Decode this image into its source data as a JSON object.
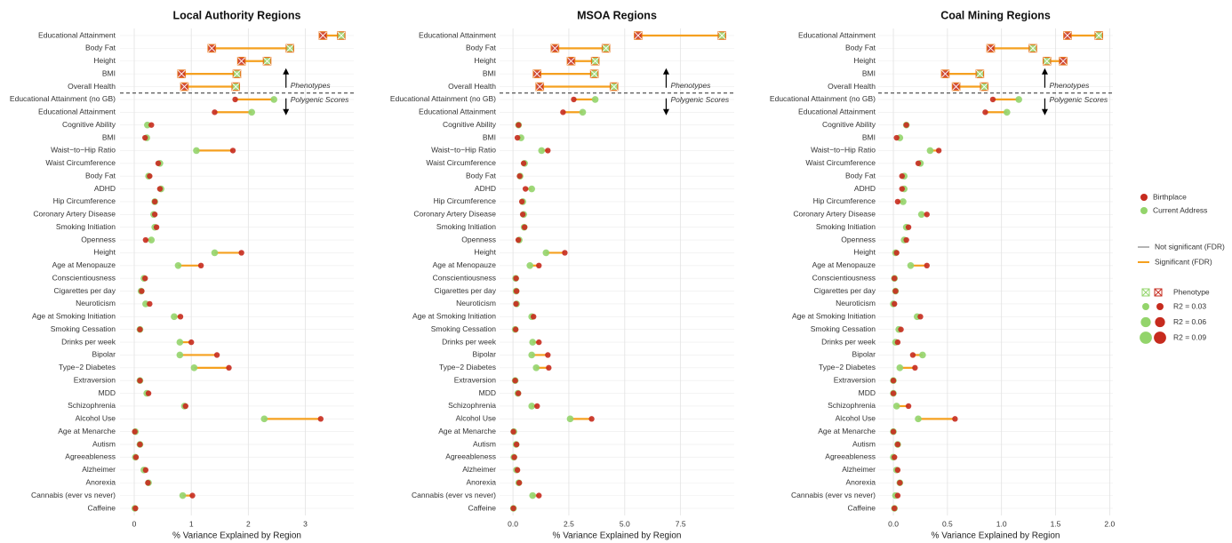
{
  "chart_data": [
    {
      "type": "dumbbell",
      "title": "Local Authority Regions",
      "x_label": "% Variance Explained by Region",
      "categories": [
        "Educational Attainment",
        "Body Fat",
        "Height",
        "BMI",
        "Overall Health",
        "Educational Attainment (no GB)",
        "Educational Attainment",
        "Cognitive Ability",
        "BMI",
        "Waist−to−Hip Ratio",
        "Waist Circumference",
        "Body Fat",
        "ADHD",
        "Hip Circumference",
        "Coronary Artery Disease",
        "Smoking Initiation",
        "Openness",
        "Height",
        "Age at Menopauze",
        "Conscientiousness",
        "Cigarettes per day",
        "Neuroticism",
        "Age at Smoking Initiation",
        "Smoking Cessation",
        "Drinks per week",
        "Bipolar",
        "Type−2 Diabetes",
        "Extraversion",
        "MDD",
        "Schizophrenia",
        "Alcohol Use",
        "Age at Menarche",
        "Autism",
        "Agreeableness",
        "Alzheimer",
        "Anorexia",
        "Cannabis (ever vs never)",
        "Caffeine"
      ],
      "phenotype_rows": 5,
      "annotations": [
        "Phenotypes",
        "Polygenic Scores"
      ],
      "series": [
        {
          "name": "Birthplace",
          "color": "#c62b1e",
          "values": [
            3.31,
            1.36,
            1.88,
            0.83,
            0.88,
            1.77,
            1.41,
            0.3,
            0.19,
            1.73,
            0.42,
            0.27,
            0.45,
            0.36,
            0.36,
            0.39,
            0.2,
            1.88,
            1.17,
            0.19,
            0.13,
            0.27,
            0.81,
            0.1,
            1.0,
            1.45,
            1.66,
            0.1,
            0.25,
            0.9,
            3.27,
            0.01,
            0.1,
            0.03,
            0.2,
            0.24,
            1.02,
            0.02
          ]
        },
        {
          "name": "Current Address",
          "color": "#93d46b",
          "values": [
            3.63,
            2.73,
            2.33,
            1.8,
            1.78,
            2.45,
            2.06,
            0.23,
            0.22,
            1.09,
            0.45,
            0.25,
            0.47,
            0.36,
            0.34,
            0.36,
            0.3,
            1.41,
            0.77,
            0.17,
            0.12,
            0.2,
            0.7,
            0.1,
            0.8,
            0.8,
            1.05,
            0.1,
            0.22,
            0.88,
            2.28,
            0.02,
            0.1,
            0.02,
            0.17,
            0.25,
            0.85,
            0.01
          ]
        }
      ],
      "xlim": [
        -0.25,
        3.85
      ],
      "xticks": [
        0,
        1,
        2,
        3
      ],
      "grid": true
    },
    {
      "type": "dumbbell",
      "title": "MSOA Regions",
      "x_label": "% Variance Explained by Region",
      "categories": [
        "Educational Attainment",
        "Body Fat",
        "Height",
        "BMI",
        "Overall Health",
        "Educational Attainment (no GB)",
        "Educational Attainment",
        "Cognitive Ability",
        "BMI",
        "Waist−to−Hip Ratio",
        "Waist Circumference",
        "Body Fat",
        "ADHD",
        "Hip Circumference",
        "Coronary Artery Disease",
        "Smoking Initiation",
        "Openness",
        "Height",
        "Age at Menopauze",
        "Conscientiousness",
        "Cigarettes per day",
        "Neuroticism",
        "Age at Smoking Initiation",
        "Smoking Cessation",
        "Drinks per week",
        "Bipolar",
        "Type−2 Diabetes",
        "Extraversion",
        "MDD",
        "Schizophrenia",
        "Alcohol Use",
        "Age at Menarche",
        "Autism",
        "Agreeableness",
        "Alzheimer",
        "Anorexia",
        "Cannabis (ever vs never)",
        "Caffeine"
      ],
      "phenotype_rows": 5,
      "annotations": [
        "Phenotypes",
        "Polygenic Scores"
      ],
      "series": [
        {
          "name": "Birthplace",
          "color": "#c62b1e",
          "values": [
            5.6,
            1.88,
            2.6,
            1.08,
            1.2,
            2.72,
            2.24,
            0.25,
            0.2,
            1.56,
            0.48,
            0.3,
            0.56,
            0.4,
            0.44,
            0.52,
            0.24,
            2.32,
            1.16,
            0.14,
            0.16,
            0.14,
            0.92,
            0.12,
            1.16,
            1.56,
            1.6,
            0.1,
            0.24,
            1.08,
            3.52,
            0.02,
            0.16,
            0.06,
            0.2,
            0.28,
            1.16,
            0.02
          ]
        },
        {
          "name": "Current Address",
          "color": "#93d46b",
          "values": [
            9.35,
            4.16,
            3.68,
            3.64,
            4.52,
            3.68,
            3.12,
            0.25,
            0.36,
            1.28,
            0.52,
            0.32,
            0.84,
            0.44,
            0.48,
            0.5,
            0.28,
            1.48,
            0.76,
            0.12,
            0.14,
            0.16,
            0.84,
            0.1,
            0.88,
            0.84,
            1.04,
            0.1,
            0.22,
            0.84,
            2.56,
            0.04,
            0.14,
            0.04,
            0.16,
            0.26,
            0.88,
            0.02
          ]
        }
      ],
      "xlim": [
        -0.6,
        9.9
      ],
      "xticks": [
        {
          "value": 0,
          "label": "0.0"
        },
        2.5,
        {
          "value": 5,
          "label": "5.0"
        },
        7.5
      ],
      "grid": true
    },
    {
      "type": "dumbbell",
      "title": "Coal Mining Regions",
      "x_label": "% Variance Explained by Region",
      "categories": [
        "Educational Attainment",
        "Body Fat",
        "Height",
        "BMI",
        "Overall Health",
        "Educational Attainment (no GB)",
        "Educational Attainment",
        "Cognitive Ability",
        "BMI",
        "Waist−to−Hip Ratio",
        "Waist Circumference",
        "Body Fat",
        "ADHD",
        "Hip Circumference",
        "Coronary Artery Disease",
        "Smoking Initiation",
        "Openness",
        "Height",
        "Age at Menopauze",
        "Conscientiousness",
        "Cigarettes per day",
        "Neuroticism",
        "Age at Smoking Initiation",
        "Smoking Cessation",
        "Drinks per week",
        "Bipolar",
        "Type−2 Diabetes",
        "Extraversion",
        "MDD",
        "Schizophrenia",
        "Alcohol Use",
        "Age at Menarche",
        "Autism",
        "Agreeableness",
        "Alzheimer",
        "Anorexia",
        "Cannabis (ever vs never)",
        "Caffeine"
      ],
      "phenotype_rows": 5,
      "annotations": [
        "Phenotypes",
        "Polygenic Scores"
      ],
      "series": [
        {
          "name": "Birthplace",
          "color": "#c62b1e",
          "values": [
            1.61,
            0.9,
            1.57,
            0.48,
            0.58,
            0.92,
            0.85,
            0.12,
            0.03,
            0.42,
            0.23,
            0.08,
            0.08,
            0.04,
            0.31,
            0.14,
            0.12,
            0.03,
            0.31,
            0.01,
            0.02,
            0.01,
            0.25,
            0.07,
            0.04,
            0.18,
            0.2,
            0,
            0,
            0.14,
            0.57,
            0,
            0.04,
            0.01,
            0.04,
            0.06,
            0.04,
            0.01
          ]
        },
        {
          "name": "Current Address",
          "color": "#93d46b",
          "values": [
            1.9,
            1.29,
            1.42,
            0.8,
            0.84,
            1.16,
            1.05,
            0.12,
            0.06,
            0.34,
            0.25,
            0.1,
            0.1,
            0.09,
            0.26,
            0.12,
            0.1,
            0.02,
            0.16,
            0.01,
            0.02,
            0,
            0.22,
            0.05,
            0.02,
            0.27,
            0.06,
            0,
            0,
            0.03,
            0.23,
            0,
            0.04,
            0,
            0.03,
            0.06,
            0.02,
            0.01
          ]
        }
      ],
      "xlim": [
        -0.14,
        2.03
      ],
      "xticks": [
        {
          "value": 0,
          "label": "0.0"
        },
        0.5,
        {
          "value": 1,
          "label": "1.0"
        },
        1.5,
        {
          "value": 2,
          "label": "2.0"
        }
      ],
      "grid": true
    }
  ],
  "legend": {
    "series": [
      {
        "name": "Birthplace",
        "color": "#c62b1e"
      },
      {
        "name": "Current Address",
        "color": "#93d46b"
      }
    ],
    "lines": [
      {
        "label": "Not significant (FDR)",
        "color": "#b5b5b5"
      },
      {
        "label": "Significant (FDR)",
        "color": "#f5a01f"
      }
    ],
    "phenotype": "Phenotype",
    "sizes": [
      {
        "value": 0.03,
        "label": "R2 = 0.03"
      },
      {
        "value": 0.06,
        "label": "R2 = 0.06"
      },
      {
        "value": 0.09,
        "label": "R2 = 0.09"
      }
    ]
  }
}
